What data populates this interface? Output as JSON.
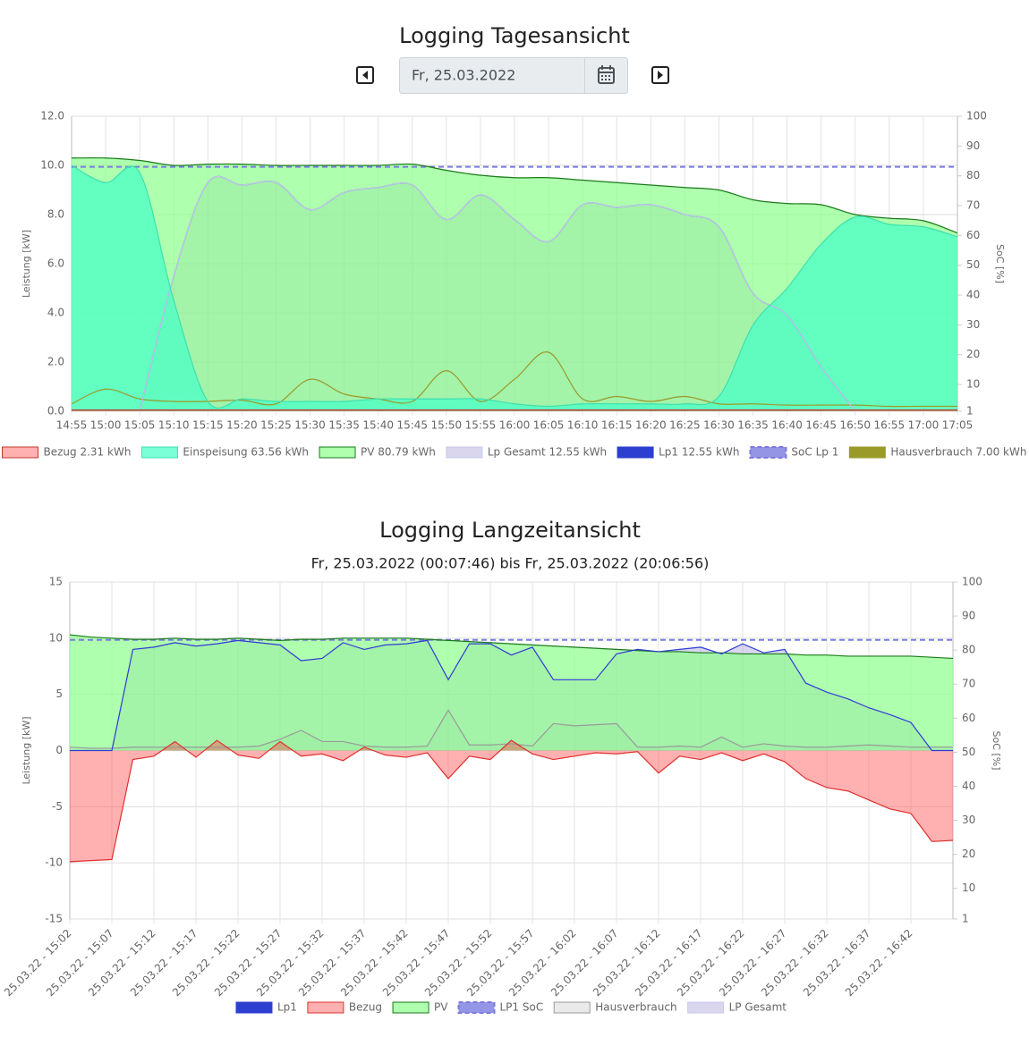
{
  "date_picker": "Fr, 25.03.2022",
  "chart_data": [
    {
      "type": "area",
      "title": "Logging Tagesansicht",
      "ylabel": "Leistung [kW]",
      "y2label": "SoC [%]",
      "smooth": true,
      "grid": true,
      "categories": [
        "14:55",
        "15:00",
        "15:05",
        "15:10",
        "15:15",
        "15:20",
        "15:25",
        "15:30",
        "15:35",
        "15:40",
        "15:45",
        "15:50",
        "15:55",
        "16:00",
        "16:05",
        "16:10",
        "16:15",
        "16:20",
        "16:25",
        "16:30",
        "16:35",
        "16:40",
        "16:45",
        "16:50",
        "16:55",
        "17:00",
        "17:05"
      ],
      "ylim": [
        0,
        12
      ],
      "yticks": [
        {
          "value": 0,
          "label": "0.0"
        },
        {
          "value": 2,
          "label": "2.0"
        },
        {
          "value": 4,
          "label": "4.0"
        },
        {
          "value": 6,
          "label": "6.0"
        },
        {
          "value": 8,
          "label": "8.0"
        },
        {
          "value": 10,
          "label": "10.0"
        },
        {
          "value": 12,
          "label": "12.0"
        }
      ],
      "y2lim": [
        1,
        100
      ],
      "y2ticks": [
        1,
        10,
        20,
        30,
        40,
        50,
        60,
        70,
        80,
        90,
        100
      ],
      "series": [
        {
          "name": "Bezug 2.31 kWh",
          "color": "#c0392b",
          "fill": "rgba(255,80,80,0.45)",
          "values": [
            0.05,
            0.05,
            0.05,
            0.05,
            0.05,
            0.05,
            0.05,
            0.05,
            0.05,
            0.05,
            0.05,
            0.05,
            0.05,
            0.05,
            0.05,
            0.05,
            0.05,
            0.05,
            0.05,
            0.05,
            0.05,
            0.05,
            0.05,
            0.05,
            0.05,
            0.05,
            0.05
          ]
        },
        {
          "name": "Einspeisung 63.56 kWh",
          "color": "#3ee0b0",
          "fill": "rgba(70,255,200,0.72)",
          "values": [
            10.0,
            9.3,
            9.7,
            4.5,
            0.4,
            0.5,
            0.4,
            0.4,
            0.4,
            0.5,
            0.5,
            0.5,
            0.5,
            0.3,
            0.2,
            0.3,
            0.3,
            0.3,
            0.3,
            0.6,
            3.5,
            5.0,
            6.8,
            7.9,
            7.6,
            7.5,
            7.1
          ]
        },
        {
          "name": "PV 80.79 kWh",
          "color": "#1a7a1a",
          "fill": "rgba(140,255,140,0.7)",
          "values": [
            10.3,
            10.3,
            10.2,
            10.0,
            10.05,
            10.05,
            10.0,
            10.0,
            10.0,
            10.0,
            10.05,
            9.8,
            9.6,
            9.5,
            9.5,
            9.4,
            9.3,
            9.2,
            9.1,
            9.0,
            8.6,
            8.45,
            8.4,
            8.0,
            7.85,
            7.75,
            7.25
          ]
        },
        {
          "name": "Lp Gesamt 12.55 kWh",
          "color": "#c8c8ee",
          "fill": "rgba(130,120,200,0.3)",
          "values": [
            null,
            null,
            0,
            5.5,
            9.3,
            9.2,
            9.3,
            8.2,
            8.9,
            9.1,
            9.2,
            7.8,
            8.8,
            7.8,
            6.9,
            8.4,
            8.3,
            8.4,
            8.0,
            7.5,
            4.8,
            3.9,
            1.8,
            0,
            null,
            null,
            null
          ]
        },
        {
          "name": "Lp1 12.55 kWh",
          "color": "#2d3fd0",
          "fill": null,
          "values": [
            null,
            null,
            0,
            5.5,
            9.3,
            9.2,
            9.3,
            8.2,
            8.9,
            9.1,
            9.2,
            7.8,
            8.8,
            7.8,
            6.9,
            8.4,
            8.3,
            8.4,
            8.0,
            7.5,
            4.8,
            3.9,
            1.8,
            0,
            null,
            null,
            null
          ]
        },
        {
          "name": "SoC Lp 1",
          "color": "#7b7be0",
          "fill": null,
          "dashed": true,
          "axis": "y2",
          "values": [
            83,
            83,
            83,
            83,
            83,
            83,
            83,
            83,
            83,
            83,
            83,
            83,
            83,
            83,
            83,
            83,
            83,
            83,
            83,
            83,
            83,
            83,
            83,
            83,
            83,
            83,
            83
          ]
        },
        {
          "name": "Hausverbrauch 7.00 kWh",
          "color": "#9a9a2a",
          "fill": null,
          "values": [
            0.3,
            0.9,
            0.5,
            0.4,
            0.4,
            0.45,
            0.3,
            1.3,
            0.7,
            0.5,
            0.4,
            1.65,
            0.4,
            1.3,
            2.4,
            0.5,
            0.6,
            0.4,
            0.6,
            0.3,
            0.3,
            0.25,
            0.25,
            0.25,
            0.2,
            0.2,
            0.2
          ]
        }
      ]
    },
    {
      "type": "area",
      "title": "Logging Langzeitansicht",
      "subtitle": "Fr, 25.03.2022 (00:07:46) bis Fr, 25.03.2022 (20:06:56)",
      "ylabel": "Leistung [kW]",
      "y2label": "SoC [%]",
      "smooth": false,
      "grid": true,
      "categories": [
        "25.03.22 - 15:02",
        null,
        "25.03.22 - 15:07",
        null,
        "25.03.22 - 15:12",
        null,
        "25.03.22 - 15:17",
        null,
        "25.03.22 - 15:22",
        null,
        "25.03.22 - 15:27",
        null,
        "25.03.22 - 15:32",
        null,
        "25.03.22 - 15:37",
        null,
        "25.03.22 - 15:42",
        null,
        "25.03.22 - 15:47",
        null,
        "25.03.22 - 15:52",
        null,
        "25.03.22 - 15:57",
        null,
        "25.03.22 - 16:02",
        null,
        "25.03.22 - 16:07",
        null,
        "25.03.22 - 16:12",
        null,
        "25.03.22 - 16:17",
        null,
        "25.03.22 - 16:22",
        null,
        "25.03.22 - 16:27",
        null,
        "25.03.22 - 16:32",
        null,
        "25.03.22 - 16:37",
        null,
        "25.03.22 - 16:42",
        null,
        null
      ],
      "ylim": [
        -15,
        15
      ],
      "yticks": [
        -15,
        -10,
        -5,
        0,
        5,
        10,
        15
      ],
      "y2lim": [
        1,
        100
      ],
      "y2ticks": [
        1,
        10,
        20,
        30,
        40,
        50,
        60,
        70,
        80,
        90,
        100
      ],
      "series": [
        {
          "name": "Lp1",
          "color": "#2d3fd0",
          "fill": null,
          "values": [
            0,
            0,
            0,
            9.0,
            9.2,
            9.6,
            9.3,
            9.5,
            9.8,
            9.6,
            9.4,
            8.0,
            8.2,
            9.6,
            9.0,
            9.4,
            9.5,
            9.8,
            6.3,
            9.5,
            9.5,
            8.5,
            9.2,
            6.3,
            6.3,
            6.3,
            8.6,
            9.0,
            8.8,
            9.0,
            9.2,
            8.6,
            9.5,
            8.7,
            9.0,
            6.0,
            5.2,
            4.6,
            3.8,
            3.2,
            2.5,
            0,
            0
          ]
        },
        {
          "name": "Bezug",
          "color": "#e03030",
          "fill": "rgba(255,80,80,0.45)",
          "values": [
            -9.9,
            -9.8,
            -9.7,
            -0.8,
            -0.5,
            0.8,
            -0.6,
            0.9,
            -0.4,
            -0.7,
            0.8,
            -0.5,
            -0.3,
            -0.9,
            0.3,
            -0.4,
            -0.6,
            -0.2,
            -2.5,
            -0.5,
            -0.8,
            0.9,
            -0.3,
            -0.8,
            -0.5,
            -0.2,
            -0.3,
            -0.1,
            -2.0,
            -0.5,
            -0.8,
            -0.2,
            -0.9,
            -0.3,
            -1.0,
            -2.5,
            -3.3,
            -3.6,
            -4.4,
            -5.2,
            -5.6,
            -8.1,
            -8.0
          ]
        },
        {
          "name": "PV",
          "color": "#1a7a1a",
          "fill": "rgba(140,255,140,0.7)",
          "values": [
            10.3,
            10.1,
            10.0,
            9.9,
            9.9,
            10.0,
            9.9,
            9.9,
            10.0,
            9.9,
            9.8,
            9.9,
            9.9,
            10.0,
            10.0,
            10.0,
            10.0,
            9.9,
            9.8,
            9.7,
            9.6,
            9.5,
            9.4,
            9.3,
            9.2,
            9.1,
            9.0,
            8.9,
            8.8,
            8.8,
            8.7,
            8.7,
            8.6,
            8.6,
            8.6,
            8.5,
            8.5,
            8.4,
            8.4,
            8.4,
            8.4,
            8.3,
            8.2
          ]
        },
        {
          "name": "LP1 SoC",
          "color": "#7b7be0",
          "fill": null,
          "dashed": true,
          "axis": "y2",
          "values": [
            83,
            83,
            83,
            83,
            83,
            83,
            83,
            83,
            83,
            83,
            83,
            83,
            83,
            83,
            83,
            83,
            83,
            83,
            83,
            83,
            83,
            83,
            83,
            83,
            83,
            83,
            83,
            83,
            83,
            83,
            83,
            83,
            83,
            83,
            83,
            83,
            83,
            83,
            83,
            83,
            83,
            83,
            83
          ]
        },
        {
          "name": "Hausverbrauch",
          "color": "#9a9a9a",
          "fill": "rgba(150,150,150,0.2)",
          "values": [
            0.3,
            0.2,
            0.2,
            0.3,
            0.3,
            0.3,
            0.3,
            0.3,
            0.3,
            0.4,
            1.0,
            1.8,
            0.8,
            0.8,
            0.4,
            0.3,
            0.3,
            0.4,
            3.6,
            0.5,
            0.5,
            0.6,
            0.4,
            2.4,
            2.2,
            2.3,
            2.4,
            0.3,
            0.3,
            0.4,
            0.3,
            1.2,
            0.3,
            0.6,
            0.4,
            0.3,
            0.3,
            0.4,
            0.5,
            0.4,
            0.3,
            0.3,
            0.3
          ]
        },
        {
          "name": "LP Gesamt",
          "color": "#c8c8ee",
          "fill": "rgba(130,120,200,0.3)",
          "values": [
            0,
            0,
            0,
            9.0,
            9.2,
            9.6,
            9.3,
            9.5,
            9.8,
            9.6,
            9.4,
            8.0,
            8.2,
            9.6,
            9.0,
            9.4,
            9.5,
            9.8,
            6.3,
            9.5,
            9.5,
            8.5,
            9.2,
            6.3,
            6.3,
            6.3,
            8.6,
            9.0,
            8.8,
            9.0,
            9.2,
            8.6,
            9.5,
            8.7,
            9.0,
            6.0,
            5.2,
            4.6,
            3.8,
            3.2,
            2.5,
            0,
            0
          ]
        }
      ]
    }
  ]
}
